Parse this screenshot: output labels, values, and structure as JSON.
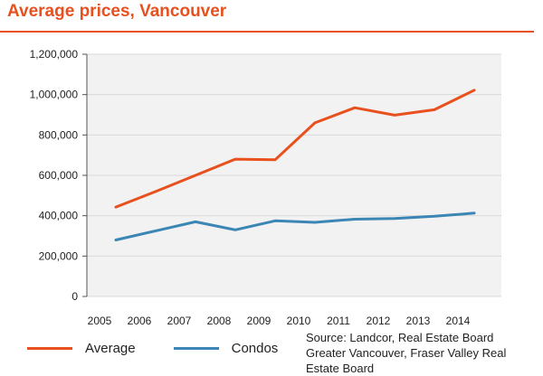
{
  "title": "Average prices, Vancouver",
  "source": "Source: Landcor, Real Estate Board Greater Vancouver, Fraser Valley Real Estate Board",
  "colors": {
    "accent": "#e8501e",
    "average": "#e8501e",
    "condos": "#3b86b4",
    "grid": "#dcdcdc",
    "plot_bg": "#f2f2f2"
  },
  "chart_data": {
    "type": "line",
    "title": "Average prices, Vancouver",
    "x": [
      "2005",
      "2006",
      "2007",
      "2008",
      "2009",
      "2010",
      "2011",
      "2012",
      "2013",
      "2014"
    ],
    "series": [
      {
        "name": "Average",
        "color": "#e8501e",
        "values": [
          443000,
          520000,
          600000,
          680000,
          677000,
          860000,
          935000,
          898000,
          925000,
          1022000
        ]
      },
      {
        "name": "Condos",
        "color": "#3b86b4",
        "values": [
          280000,
          325000,
          370000,
          330000,
          375000,
          367000,
          383000,
          386000,
          397000,
          413000
        ]
      }
    ],
    "y_ticks": [
      "0",
      "200,000",
      "400,000",
      "600,000",
      "800,000",
      "1,000,000",
      "1,200,000"
    ],
    "ylim": [
      0,
      1200000
    ],
    "grid": true,
    "legend_position": "bottom-left"
  }
}
